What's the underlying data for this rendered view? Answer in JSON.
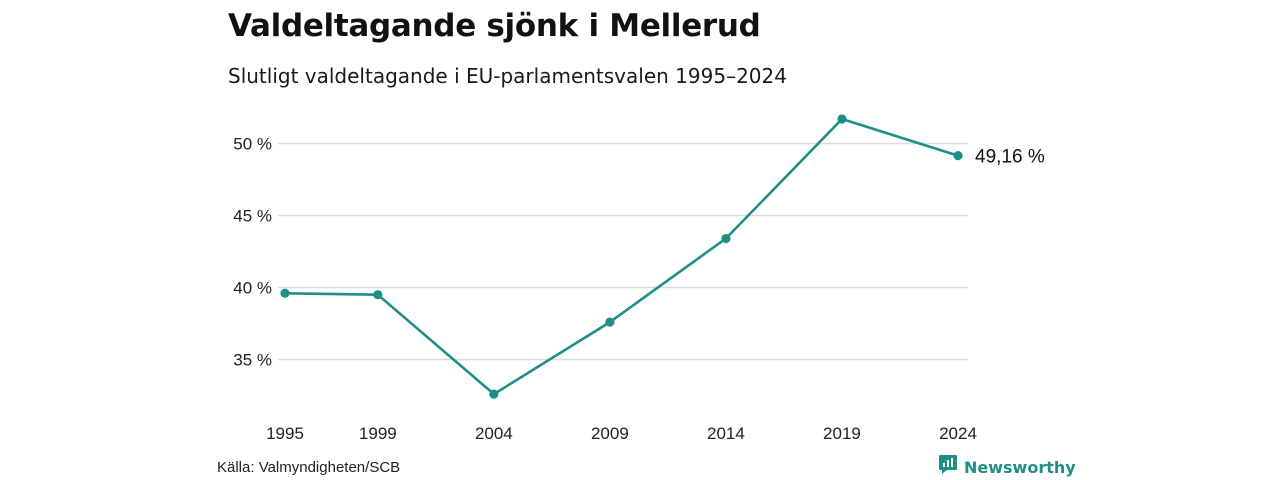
{
  "header": {
    "title": "Valdeltagande sjönk i Mellerud",
    "subtitle": "Slutligt valdeltagande i EU-parlamentsvalen 1995–2024"
  },
  "footer": {
    "source": "Källa: Valmyndigheten/SCB",
    "brand": "Newsworthy"
  },
  "colors": {
    "line": "#1f8f86",
    "grid": "#dddddd",
    "brand": "#1f8f86"
  },
  "icons": {
    "brand": "newsworthy-logo-icon"
  },
  "chart_data": {
    "type": "line",
    "title": "Valdeltagande sjönk i Mellerud",
    "subtitle": "Slutligt valdeltagande i EU-parlamentsvalen 1995–2024",
    "xlabel": "",
    "ylabel": "",
    "categories": [
      "1995",
      "1999",
      "2004",
      "2009",
      "2014",
      "2019",
      "2024"
    ],
    "values": [
      39.6,
      39.5,
      32.6,
      37.6,
      43.4,
      51.7,
      49.16
    ],
    "end_label": "49,16 %",
    "yticks": [
      35,
      40,
      45,
      50
    ],
    "ytick_labels": [
      "35 %",
      "40 %",
      "45 %",
      "50 %"
    ],
    "ylim": [
      32.6,
      51.7
    ],
    "grid": true,
    "legend": "none"
  }
}
